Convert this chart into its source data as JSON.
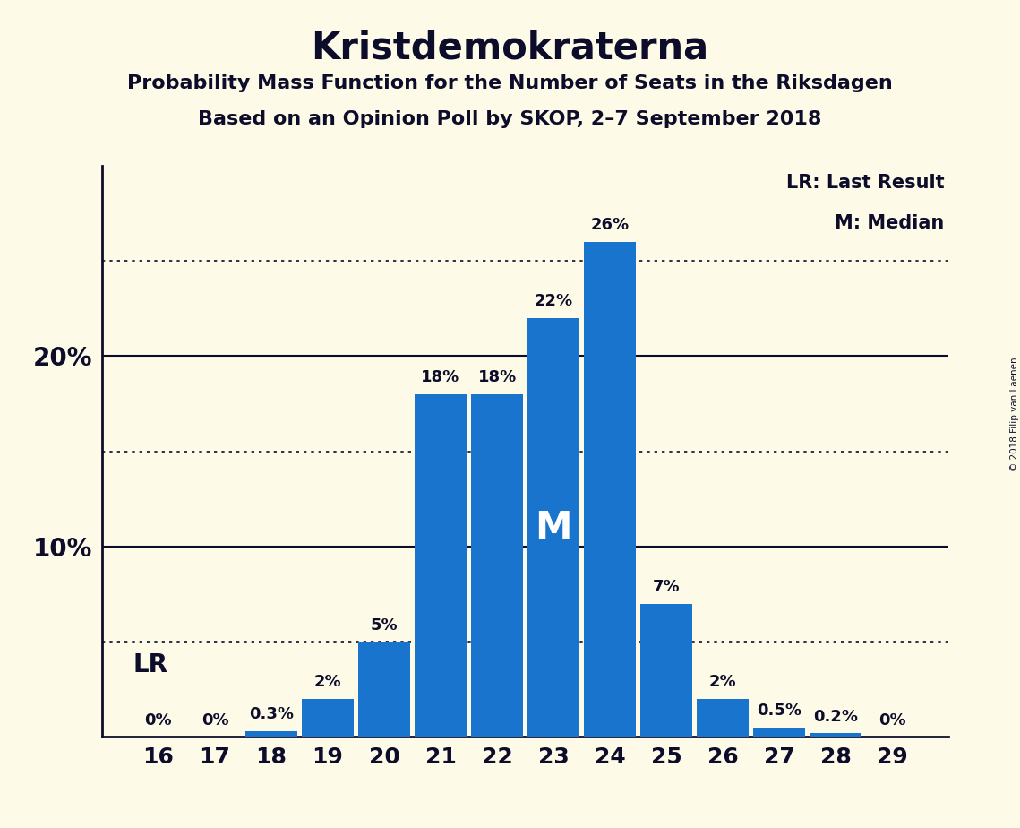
{
  "title": "Kristdemokraterna",
  "subtitle1": "Probability Mass Function for the Number of Seats in the Riksdagen",
  "subtitle2": "Based on an Opinion Poll by SKOP, 2–7 September 2018",
  "copyright": "© 2018 Filip van Laenen",
  "seats": [
    16,
    17,
    18,
    19,
    20,
    21,
    22,
    23,
    24,
    25,
    26,
    27,
    28,
    29
  ],
  "probabilities": [
    0.0,
    0.0,
    0.3,
    2.0,
    5.0,
    18.0,
    18.0,
    22.0,
    26.0,
    7.0,
    2.0,
    0.5,
    0.2,
    0.0
  ],
  "bar_color": "#1874CD",
  "background_color": "#fdfbe8",
  "text_color": "#0d0d2b",
  "lr_seat": 16,
  "median_seat": 23,
  "legend_lr": "LR: Last Result",
  "legend_m": "M: Median",
  "solid_yticks": [
    10,
    20
  ],
  "dotted_yticks": [
    5,
    15,
    25
  ],
  "ylim": [
    0,
    30
  ],
  "xlim": [
    15.0,
    30.0
  ]
}
